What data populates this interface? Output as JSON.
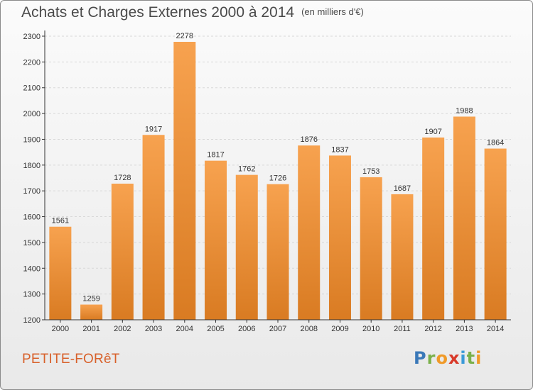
{
  "header": {
    "title": "Achats et Charges Externes 2000 à 2014",
    "subtitle": "(en milliers d'€)"
  },
  "footer": {
    "city": "PETITE-FORêT",
    "logo_letters": [
      {
        "ch": "P",
        "color": "#3a78b8"
      },
      {
        "ch": "r",
        "color": "#7ab04a"
      },
      {
        "ch": "o",
        "color": "#f09a28"
      },
      {
        "ch": "x",
        "color": "#d83a2a"
      },
      {
        "ch": "i",
        "color": "#3a9ad8"
      },
      {
        "ch": "t",
        "color": "#7ab04a"
      },
      {
        "ch": "i",
        "color": "#f09a28"
      }
    ]
  },
  "colors": {
    "bar_light": "#f7a24f",
    "bar_dark": "#d97b22",
    "grid": "#d8d8d8",
    "axis": "#333333"
  },
  "chart_data": {
    "type": "bar",
    "title": "Achats et Charges Externes 2000 à 2014",
    "subtitle": "(en milliers d'€)",
    "xlabel": "",
    "ylabel": "",
    "categories": [
      "2000",
      "2001",
      "2002",
      "2003",
      "2004",
      "2005",
      "2006",
      "2007",
      "2008",
      "2009",
      "2010",
      "2011",
      "2012",
      "2013",
      "2014"
    ],
    "values": [
      1561,
      1259,
      1728,
      1917,
      2278,
      1817,
      1762,
      1726,
      1876,
      1837,
      1753,
      1687,
      1907,
      1988,
      1864
    ],
    "ylim": [
      1200,
      2300
    ],
    "yticks": [
      1200,
      1300,
      1400,
      1500,
      1600,
      1700,
      1800,
      1900,
      2000,
      2100,
      2200,
      2300
    ],
    "grid": true,
    "data_labels": true
  }
}
